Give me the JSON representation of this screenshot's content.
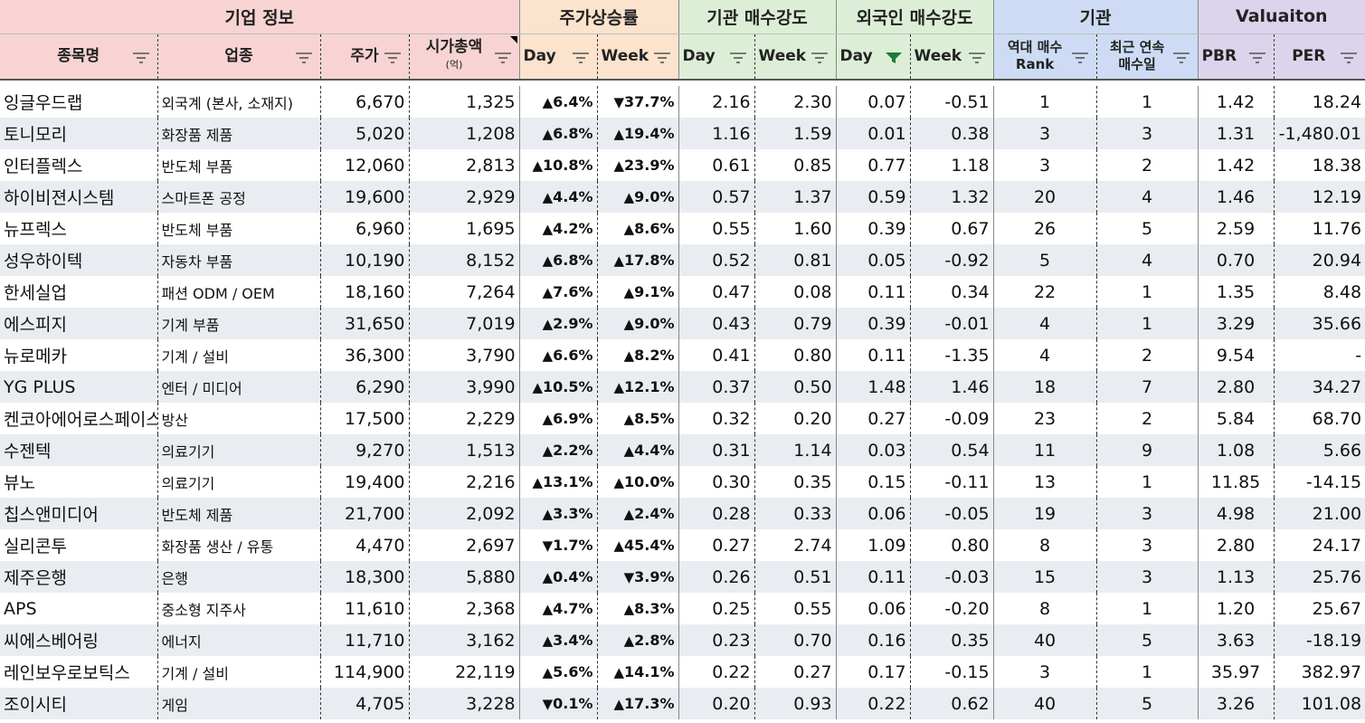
{
  "groups": {
    "company": "기업 정보",
    "price_rise": "주가상승률",
    "inst_strength": "기관 매수강도",
    "foreign_strength": "외국인 매수강도",
    "institution": "기관",
    "valuation": "Valuaiton"
  },
  "columns": {
    "name": "종목명",
    "sector": "업종",
    "price": "주가",
    "mktcap": "시가총액",
    "mktcap_unit": "(억)",
    "rise_day": "Day",
    "rise_week": "Week",
    "inst_day": "Day",
    "inst_week": "Week",
    "for_day": "Day",
    "for_week": "Week",
    "rank_line1": "역대 매수",
    "rank_line2": "Rank",
    "days_line1": "최근 연속",
    "days_line2": "매수일",
    "pbr": "PBR",
    "per": "PER"
  },
  "colors": {
    "up": "#ff0000",
    "down": "#0000ff",
    "company_header": "#f8d3d3",
    "price_header": "#fbe3ce",
    "strength_header": "#dcefd6",
    "institution_header": "#cddcf4",
    "valuation_header": "#dcd4ec",
    "stripe": "#e9edf2"
  },
  "icons": {
    "filter": "filter-dropdown-icon",
    "active_filter": "funnel-filter-icon",
    "up": "up-triangle",
    "down": "down-triangle"
  },
  "rows": [
    {
      "name": "잉글우드랩",
      "sector": "외국계 (본사, 소재지)",
      "price": "6,670",
      "mktcap": "1,325",
      "rise_day": "6.4%",
      "rise_day_dir": "up",
      "rise_week": "37.7%",
      "rise_week_dir": "down",
      "inst_day": "2.16",
      "inst_week": "2.30",
      "for_day": "0.07",
      "for_week": "-0.51",
      "rank": "1",
      "days": "1",
      "pbr": "1.42",
      "per": "18.24"
    },
    {
      "name": "토니모리",
      "sector": "화장품 제품",
      "price": "5,020",
      "mktcap": "1,208",
      "rise_day": "6.8%",
      "rise_day_dir": "up",
      "rise_week": "19.4%",
      "rise_week_dir": "up",
      "inst_day": "1.16",
      "inst_week": "1.59",
      "for_day": "0.01",
      "for_week": "0.38",
      "rank": "3",
      "days": "3",
      "pbr": "1.31",
      "per": "-1,480.01"
    },
    {
      "name": "인터플렉스",
      "sector": "반도체 부품",
      "price": "12,060",
      "mktcap": "2,813",
      "rise_day": "10.8%",
      "rise_day_dir": "up",
      "rise_week": "23.9%",
      "rise_week_dir": "up",
      "inst_day": "0.61",
      "inst_week": "0.85",
      "for_day": "0.77",
      "for_week": "1.18",
      "rank": "3",
      "days": "2",
      "pbr": "1.42",
      "per": "18.38"
    },
    {
      "name": "하이비젼시스템",
      "sector": "스마트폰 공정",
      "price": "19,600",
      "mktcap": "2,929",
      "rise_day": "4.4%",
      "rise_day_dir": "up",
      "rise_week": "9.0%",
      "rise_week_dir": "up",
      "inst_day": "0.57",
      "inst_week": "1.37",
      "for_day": "0.59",
      "for_week": "1.32",
      "rank": "20",
      "days": "4",
      "pbr": "1.46",
      "per": "12.19"
    },
    {
      "name": "뉴프렉스",
      "sector": "반도체 부품",
      "price": "6,960",
      "mktcap": "1,695",
      "rise_day": "4.2%",
      "rise_day_dir": "up",
      "rise_week": "8.6%",
      "rise_week_dir": "up",
      "inst_day": "0.55",
      "inst_week": "1.60",
      "for_day": "0.39",
      "for_week": "0.67",
      "rank": "26",
      "days": "5",
      "pbr": "2.59",
      "per": "11.76"
    },
    {
      "name": "성우하이텍",
      "sector": "자동차 부품",
      "price": "10,190",
      "mktcap": "8,152",
      "rise_day": "6.8%",
      "rise_day_dir": "up",
      "rise_week": "17.8%",
      "rise_week_dir": "up",
      "inst_day": "0.52",
      "inst_week": "0.81",
      "for_day": "0.05",
      "for_week": "-0.92",
      "rank": "5",
      "days": "4",
      "pbr": "0.70",
      "per": "20.94"
    },
    {
      "name": "한세실업",
      "sector": "패션 ODM / OEM",
      "price": "18,160",
      "mktcap": "7,264",
      "rise_day": "7.6%",
      "rise_day_dir": "up",
      "rise_week": "9.1%",
      "rise_week_dir": "up",
      "inst_day": "0.47",
      "inst_week": "0.08",
      "for_day": "0.11",
      "for_week": "0.34",
      "rank": "22",
      "days": "1",
      "pbr": "1.35",
      "per": "8.48"
    },
    {
      "name": "에스피지",
      "sector": "기계 부품",
      "price": "31,650",
      "mktcap": "7,019",
      "rise_day": "2.9%",
      "rise_day_dir": "up",
      "rise_week": "9.0%",
      "rise_week_dir": "up",
      "inst_day": "0.43",
      "inst_week": "0.79",
      "for_day": "0.39",
      "for_week": "-0.01",
      "rank": "4",
      "days": "1",
      "pbr": "3.29",
      "per": "35.66"
    },
    {
      "name": "뉴로메카",
      "sector": "기계 / 설비",
      "price": "36,300",
      "mktcap": "3,790",
      "rise_day": "6.6%",
      "rise_day_dir": "up",
      "rise_week": "8.2%",
      "rise_week_dir": "up",
      "inst_day": "0.41",
      "inst_week": "0.80",
      "for_day": "0.11",
      "for_week": "-1.35",
      "rank": "4",
      "days": "2",
      "pbr": "9.54",
      "per": "-"
    },
    {
      "name": "YG PLUS",
      "sector": "엔터 / 미디어",
      "price": "6,290",
      "mktcap": "3,990",
      "rise_day": "10.5%",
      "rise_day_dir": "up",
      "rise_week": "12.1%",
      "rise_week_dir": "up",
      "inst_day": "0.37",
      "inst_week": "0.50",
      "for_day": "1.48",
      "for_week": "1.46",
      "rank": "18",
      "days": "7",
      "pbr": "2.80",
      "per": "34.27"
    },
    {
      "name": "켄코아에어로스페이스",
      "sector": "방산",
      "price": "17,500",
      "mktcap": "2,229",
      "rise_day": "6.9%",
      "rise_day_dir": "up",
      "rise_week": "8.5%",
      "rise_week_dir": "up",
      "inst_day": "0.32",
      "inst_week": "0.20",
      "for_day": "0.27",
      "for_week": "-0.09",
      "rank": "23",
      "days": "2",
      "pbr": "5.84",
      "per": "68.70"
    },
    {
      "name": "수젠텍",
      "sector": "의료기기",
      "price": "9,270",
      "mktcap": "1,513",
      "rise_day": "2.2%",
      "rise_day_dir": "up",
      "rise_week": "4.4%",
      "rise_week_dir": "up",
      "inst_day": "0.31",
      "inst_week": "1.14",
      "for_day": "0.03",
      "for_week": "0.54",
      "rank": "11",
      "days": "9",
      "pbr": "1.08",
      "per": "5.66"
    },
    {
      "name": "뷰노",
      "sector": "의료기기",
      "price": "19,400",
      "mktcap": "2,216",
      "rise_day": "13.1%",
      "rise_day_dir": "up",
      "rise_week": "10.0%",
      "rise_week_dir": "up",
      "inst_day": "0.30",
      "inst_week": "0.35",
      "for_day": "0.15",
      "for_week": "-0.11",
      "rank": "13",
      "days": "1",
      "pbr": "11.85",
      "per": "-14.15"
    },
    {
      "name": "칩스앤미디어",
      "sector": "반도체 제품",
      "price": "21,700",
      "mktcap": "2,092",
      "rise_day": "3.3%",
      "rise_day_dir": "up",
      "rise_week": "2.4%",
      "rise_week_dir": "up",
      "inst_day": "0.28",
      "inst_week": "0.33",
      "for_day": "0.06",
      "for_week": "-0.05",
      "rank": "19",
      "days": "3",
      "pbr": "4.98",
      "per": "21.00"
    },
    {
      "name": "실리콘투",
      "sector": "화장품 생산 / 유통",
      "price": "4,470",
      "mktcap": "2,697",
      "rise_day": "1.7%",
      "rise_day_dir": "down",
      "rise_week": "45.4%",
      "rise_week_dir": "up",
      "inst_day": "0.27",
      "inst_week": "2.74",
      "for_day": "1.09",
      "for_week": "0.80",
      "rank": "8",
      "days": "3",
      "pbr": "2.80",
      "per": "24.17"
    },
    {
      "name": "제주은행",
      "sector": "은행",
      "price": "18,300",
      "mktcap": "5,880",
      "rise_day": "0.4%",
      "rise_day_dir": "up",
      "rise_week": "3.9%",
      "rise_week_dir": "down",
      "inst_day": "0.26",
      "inst_week": "0.51",
      "for_day": "0.11",
      "for_week": "-0.03",
      "rank": "15",
      "days": "3",
      "pbr": "1.13",
      "per": "25.76"
    },
    {
      "name": "APS",
      "sector": "중소형 지주사",
      "price": "11,610",
      "mktcap": "2,368",
      "rise_day": "4.7%",
      "rise_day_dir": "up",
      "rise_week": "8.3%",
      "rise_week_dir": "up",
      "inst_day": "0.25",
      "inst_week": "0.55",
      "for_day": "0.06",
      "for_week": "-0.20",
      "rank": "8",
      "days": "1",
      "pbr": "1.20",
      "per": "25.67"
    },
    {
      "name": "씨에스베어링",
      "sector": "에너지",
      "price": "11,710",
      "mktcap": "3,162",
      "rise_day": "3.4%",
      "rise_day_dir": "up",
      "rise_week": "2.8%",
      "rise_week_dir": "up",
      "inst_day": "0.23",
      "inst_week": "0.70",
      "for_day": "0.16",
      "for_week": "0.35",
      "rank": "40",
      "days": "5",
      "pbr": "3.63",
      "per": "-18.19"
    },
    {
      "name": "레인보우로보틱스",
      "sector": "기계 / 설비",
      "price": "114,900",
      "mktcap": "22,119",
      "rise_day": "5.6%",
      "rise_day_dir": "up",
      "rise_week": "14.1%",
      "rise_week_dir": "up",
      "inst_day": "0.22",
      "inst_week": "0.27",
      "for_day": "0.17",
      "for_week": "-0.15",
      "rank": "3",
      "days": "1",
      "pbr": "35.97",
      "per": "382.97"
    },
    {
      "name": "조이시티",
      "sector": "게임",
      "price": "4,705",
      "mktcap": "3,228",
      "rise_day": "0.1%",
      "rise_day_dir": "down",
      "rise_week": "17.3%",
      "rise_week_dir": "up",
      "inst_day": "0.20",
      "inst_week": "0.93",
      "for_day": "0.22",
      "for_week": "0.62",
      "rank": "40",
      "days": "5",
      "pbr": "3.26",
      "per": "101.08"
    }
  ]
}
